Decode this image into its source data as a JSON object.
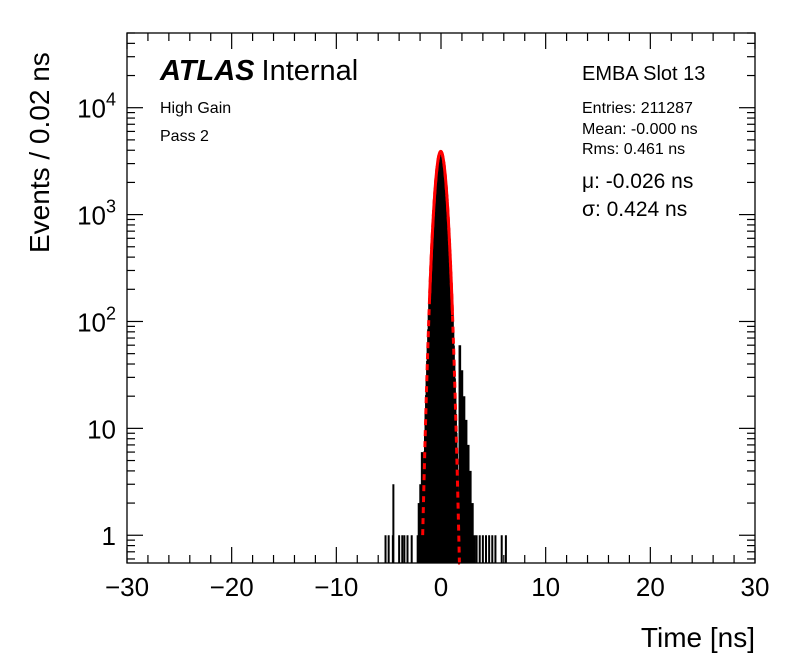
{
  "chart_data": {
    "type": "histogram",
    "title": "",
    "xlabel": "Time [ns]",
    "ylabel": "Events / 0.02 ns",
    "xlim": [
      -30,
      30
    ],
    "ylim": [
      0.55,
      50000
    ],
    "ylog": true,
    "grid": false,
    "xticks": [
      {
        "v": -30,
        "t": "−30"
      },
      {
        "v": -20,
        "t": "−20"
      },
      {
        "v": -10,
        "t": "−10"
      },
      {
        "v": 0,
        "t": "0"
      },
      {
        "v": 10,
        "t": "10"
      },
      {
        "v": 20,
        "t": "20"
      },
      {
        "v": 30,
        "t": "30"
      }
    ],
    "yticks": [
      {
        "v": 1,
        "t": "1"
      },
      {
        "v": 10,
        "t": "10"
      },
      {
        "v": 100,
        "base": "10",
        "exp": "2"
      },
      {
        "v": 1000,
        "base": "10",
        "exp": "3"
      },
      {
        "v": 10000,
        "base": "10",
        "exp": "4"
      }
    ],
    "atlas": {
      "bold": "ATLAS",
      "rest": "Internal"
    },
    "labels_left": [
      "High Gain",
      "Pass 2"
    ],
    "stats": {
      "name": "EMBA Slot 13",
      "entries": "Entries: 211287",
      "mean": "Mean: -0.000 ns",
      "rms": "Rms: 0.461 ns"
    },
    "fit_text": {
      "mu": "μ: -0.026 ns",
      "sigma": "σ: 0.424 ns"
    },
    "histogram_color": "#000000",
    "fit_color": "#ff0000",
    "histogram": {
      "bin_width": 0.02,
      "core": {
        "amplitude": 3900,
        "mean": -0.026,
        "sigma": 0.424,
        "from": -1.7,
        "to": 1.75
      },
      "tail_right": [
        {
          "x": 1.8,
          "y": 60
        },
        {
          "x": 2.0,
          "y": 35
        },
        {
          "x": 2.2,
          "y": 20
        },
        {
          "x": 2.4,
          "y": 12
        },
        {
          "x": 2.6,
          "y": 7
        },
        {
          "x": 2.8,
          "y": 4
        },
        {
          "x": 3.0,
          "y": 2
        },
        {
          "x": 3.2,
          "y": 1
        }
      ],
      "tail_left": [
        {
          "x": -1.8,
          "y": 6
        },
        {
          "x": -1.95,
          "y": 3
        },
        {
          "x": -2.1,
          "y": 2
        },
        {
          "x": -2.2,
          "y": 1
        }
      ],
      "isolated_bins": [
        -5.3,
        -5.0,
        -4.6,
        -4.0,
        -3.7,
        -3.5,
        -3.2,
        -2.8,
        3.4,
        3.7,
        4.0,
        4.3,
        4.6,
        4.9,
        5.2,
        5.8,
        6.2
      ],
      "isolated_value": 1,
      "spike": {
        "x": -4.55,
        "y": 3
      }
    },
    "fit_curve": {
      "amplitude": 3900,
      "mean": -0.026,
      "sigma": 0.424,
      "solid_range": [
        -1.1,
        1.1
      ],
      "dashed_range": [
        -1.75,
        1.85
      ]
    }
  }
}
